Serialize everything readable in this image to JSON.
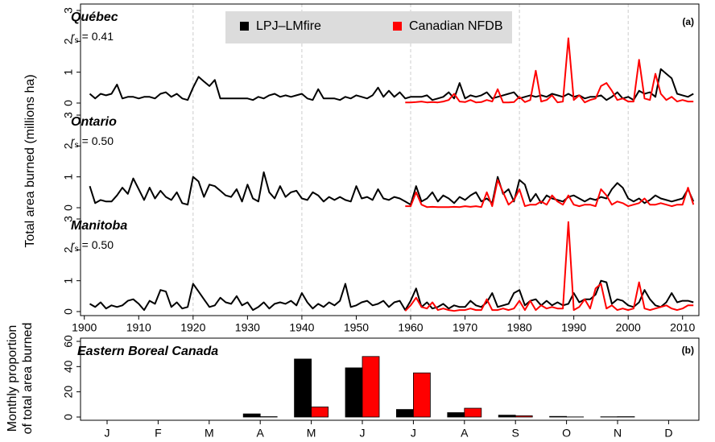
{
  "chart_data": [
    {
      "type": "line",
      "label": "(a)",
      "ylabel": "Total area burned (millions ha)",
      "x": [
        1901,
        1902,
        1903,
        1904,
        1905,
        1906,
        1907,
        1908,
        1909,
        1910,
        1911,
        1912,
        1913,
        1914,
        1915,
        1916,
        1917,
        1918,
        1919,
        1920,
        1921,
        1922,
        1923,
        1924,
        1925,
        1926,
        1927,
        1928,
        1929,
        1930,
        1931,
        1932,
        1933,
        1934,
        1935,
        1936,
        1937,
        1938,
        1939,
        1940,
        1941,
        1942,
        1943,
        1944,
        1945,
        1946,
        1947,
        1948,
        1949,
        1950,
        1951,
        1952,
        1953,
        1954,
        1955,
        1956,
        1957,
        1958,
        1959,
        1960,
        1961,
        1962,
        1963,
        1964,
        1965,
        1966,
        1967,
        1968,
        1969,
        1970,
        1971,
        1972,
        1973,
        1974,
        1975,
        1976,
        1977,
        1978,
        1979,
        1980,
        1981,
        1982,
        1983,
        1984,
        1985,
        1986,
        1987,
        1988,
        1989,
        1990,
        1991,
        1992,
        1993,
        1994,
        1995,
        1996,
        1997,
        1998,
        1999,
        2000,
        2001,
        2002,
        2003,
        2004,
        2005,
        2006,
        2007,
        2008,
        2009,
        2010,
        2011,
        2012
      ],
      "xlim": [
        1899.3,
        2013
      ],
      "xticks": [
        1900,
        1910,
        1920,
        1930,
        1940,
        1950,
        1960,
        1970,
        1980,
        1990,
        2000,
        2010
      ],
      "grid_x": [
        1920,
        1940,
        1960,
        1980,
        2000
      ],
      "series": [
        {
          "name": "LPJ–LMfire",
          "color": "#000000"
        },
        {
          "name": "Canadian NFDB",
          "color": "#ff0000"
        }
      ],
      "panels": [
        {
          "title": "Québec",
          "stat_symbol": "r",
          "stat_subscript": "s",
          "stat_text": "= 0.41",
          "ylim": [
            0,
            3
          ],
          "yticks": [
            0,
            1,
            2,
            3
          ],
          "values": [
            [
              0.3,
              0.15,
              0.3,
              0.25,
              0.3,
              0.6,
              0.15,
              0.2,
              0.2,
              0.15,
              0.2,
              0.2,
              0.15,
              0.3,
              0.35,
              0.2,
              0.3,
              0.15,
              0.1,
              0.5,
              0.85,
              0.7,
              0.55,
              0.75,
              0.15,
              0.15,
              0.15,
              0.15,
              0.15,
              0.15,
              0.1,
              0.2,
              0.15,
              0.25,
              0.3,
              0.2,
              0.25,
              0.2,
              0.25,
              0.3,
              0.15,
              0.1,
              0.45,
              0.15,
              0.15,
              0.15,
              0.1,
              0.2,
              0.15,
              0.25,
              0.2,
              0.15,
              0.25,
              0.5,
              0.2,
              0.4,
              0.2,
              0.35,
              0.15,
              0.2,
              0.2,
              0.2,
              0.25,
              0.1,
              0.15,
              0.2,
              0.35,
              0.15,
              0.65,
              0.15,
              0.25,
              0.2,
              0.25,
              0.35,
              0.15,
              0.2,
              0.25,
              0.3,
              0.35,
              0.15,
              0.2,
              0.25,
              0.2,
              0.25,
              0.2,
              0.3,
              0.25,
              0.2,
              0.3,
              0.2,
              0.25,
              0.15,
              0.2,
              0.2,
              0.25,
              0.1,
              0.2,
              0.35,
              0.15,
              0.2,
              0.1,
              0.4,
              0.3,
              0.35,
              0.2,
              1.1,
              0.95,
              0.8,
              0.3,
              0.25,
              0.2,
              0.3
            ],
            [
              null,
              null,
              null,
              null,
              null,
              null,
              null,
              null,
              null,
              null,
              null,
              null,
              null,
              null,
              null,
              null,
              null,
              null,
              null,
              null,
              null,
              null,
              null,
              null,
              null,
              null,
              null,
              null,
              null,
              null,
              null,
              null,
              null,
              null,
              null,
              null,
              null,
              null,
              null,
              null,
              null,
              null,
              null,
              null,
              null,
              null,
              null,
              null,
              null,
              null,
              null,
              null,
              null,
              null,
              null,
              null,
              null,
              null,
              0.02,
              0.02,
              0.03,
              0.05,
              0.02,
              0.03,
              0.02,
              0.05,
              0.1,
              0.3,
              0.05,
              0.03,
              0.1,
              0.02,
              0.03,
              0.1,
              0.05,
              0.45,
              0.02,
              0.02,
              0.03,
              0.2,
              0.03,
              0.1,
              1.05,
              0.05,
              0.1,
              0.25,
              0.02,
              0.05,
              2.1,
              0.1,
              0.25,
              0.02,
              0.1,
              0.15,
              0.55,
              0.65,
              0.4,
              0.1,
              0.15,
              0.05,
              0.05,
              1.4,
              0.15,
              0.1,
              0.95,
              0.3,
              0.1,
              0.2,
              0.05,
              0.1,
              0.05,
              0.05
            ]
          ]
        },
        {
          "title": "Ontario",
          "stat_symbol": "r",
          "stat_subscript": "s",
          "stat_text": "= 0.50",
          "ylim": [
            0,
            3
          ],
          "yticks": [
            0,
            1,
            2,
            3
          ],
          "values": [
            [
              0.7,
              0.15,
              0.25,
              0.2,
              0.2,
              0.4,
              0.65,
              0.45,
              0.95,
              0.6,
              0.25,
              0.65,
              0.3,
              0.55,
              0.35,
              0.25,
              0.5,
              0.15,
              0.1,
              1.0,
              0.85,
              0.35,
              0.75,
              0.7,
              0.55,
              0.4,
              0.35,
              0.6,
              0.2,
              0.75,
              0.3,
              0.2,
              1.15,
              0.5,
              0.3,
              0.7,
              0.35,
              0.5,
              0.55,
              0.3,
              0.25,
              0.5,
              0.4,
              0.2,
              0.35,
              0.25,
              0.35,
              0.25,
              0.2,
              0.7,
              0.3,
              0.35,
              0.25,
              0.6,
              0.3,
              0.25,
              0.35,
              0.3,
              0.2,
              0.1,
              0.7,
              0.2,
              0.3,
              0.5,
              0.2,
              0.4,
              0.3,
              0.15,
              0.35,
              0.25,
              0.4,
              0.5,
              0.2,
              0.3,
              0.15,
              1.0,
              0.45,
              0.6,
              0.2,
              0.9,
              0.75,
              0.2,
              0.45,
              0.15,
              0.4,
              0.3,
              0.25,
              0.2,
              0.35,
              0.4,
              0.3,
              0.2,
              0.3,
              0.25,
              0.35,
              0.3,
              0.6,
              0.8,
              0.65,
              0.3,
              0.2,
              0.3,
              0.15,
              0.25,
              0.4,
              0.3,
              0.25,
              0.2,
              0.25,
              0.3,
              0.6,
              0.2
            ],
            [
              null,
              null,
              null,
              null,
              null,
              null,
              null,
              null,
              null,
              null,
              null,
              null,
              null,
              null,
              null,
              null,
              null,
              null,
              null,
              null,
              null,
              null,
              null,
              null,
              null,
              null,
              null,
              null,
              null,
              null,
              null,
              null,
              null,
              null,
              null,
              null,
              null,
              null,
              null,
              null,
              null,
              null,
              null,
              null,
              null,
              null,
              null,
              null,
              null,
              null,
              null,
              null,
              null,
              null,
              null,
              null,
              null,
              null,
              0.05,
              0.05,
              0.5,
              0.1,
              0.02,
              0.03,
              0.02,
              0.02,
              0.02,
              0.03,
              0.02,
              0.05,
              0.03,
              0.05,
              0.02,
              0.5,
              0.05,
              0.9,
              0.5,
              0.1,
              0.25,
              0.6,
              0.05,
              0.1,
              0.1,
              0.2,
              0.1,
              0.4,
              0.2,
              0.1,
              0.4,
              0.1,
              0.05,
              0.1,
              0.1,
              0.05,
              0.6,
              0.4,
              0.1,
              0.2,
              0.15,
              0.05,
              0.1,
              0.15,
              0.3,
              0.1,
              0.1,
              0.15,
              0.1,
              0.05,
              0.1,
              0.1,
              0.65,
              0.1
            ]
          ]
        },
        {
          "title": "Manitoba",
          "stat_symbol": "r",
          "stat_subscript": "s",
          "stat_text": "= 0.50",
          "ylim": [
            0,
            3
          ],
          "yticks": [
            0,
            1,
            2,
            3
          ],
          "values": [
            [
              0.25,
              0.15,
              0.3,
              0.1,
              0.2,
              0.15,
              0.2,
              0.35,
              0.4,
              0.25,
              0.05,
              0.35,
              0.25,
              0.7,
              0.65,
              0.15,
              0.3,
              0.1,
              0.15,
              0.9,
              0.65,
              0.4,
              0.15,
              0.2,
              0.45,
              0.3,
              0.25,
              0.5,
              0.2,
              0.3,
              0.05,
              0.15,
              0.3,
              0.1,
              0.25,
              0.3,
              0.25,
              0.35,
              0.2,
              0.6,
              0.3,
              0.1,
              0.25,
              0.15,
              0.3,
              0.2,
              0.35,
              0.9,
              0.15,
              0.2,
              0.3,
              0.35,
              0.2,
              0.25,
              0.35,
              0.15,
              0.3,
              0.35,
              0.05,
              0.35,
              0.75,
              0.15,
              0.3,
              0.1,
              0.15,
              0.25,
              0.1,
              0.2,
              0.15,
              0.15,
              0.35,
              0.2,
              0.15,
              0.3,
              0.6,
              0.15,
              0.2,
              0.25,
              0.6,
              0.7,
              0.2,
              0.35,
              0.4,
              0.2,
              0.35,
              0.2,
              0.3,
              0.2,
              0.25,
              0.6,
              0.3,
              0.4,
              0.4,
              0.55,
              1.0,
              0.95,
              0.25,
              0.4,
              0.35,
              0.2,
              0.15,
              0.3,
              0.7,
              0.4,
              0.2,
              0.15,
              0.3,
              0.6,
              0.3,
              0.35,
              0.35,
              0.3
            ],
            [
              null,
              null,
              null,
              null,
              null,
              null,
              null,
              null,
              null,
              null,
              null,
              null,
              null,
              null,
              null,
              null,
              null,
              null,
              null,
              null,
              null,
              null,
              null,
              null,
              null,
              null,
              null,
              null,
              null,
              null,
              null,
              null,
              null,
              null,
              null,
              null,
              null,
              null,
              null,
              null,
              null,
              null,
              null,
              null,
              null,
              null,
              null,
              null,
              null,
              null,
              null,
              null,
              null,
              null,
              null,
              null,
              null,
              null,
              0.02,
              0.2,
              0.45,
              0.15,
              0.1,
              0.3,
              0.05,
              0.1,
              0.05,
              0.02,
              0.05,
              0.05,
              0.1,
              0.05,
              0.05,
              0.4,
              0.05,
              0.05,
              0.1,
              0.05,
              0.1,
              0.35,
              0.05,
              0.35,
              0.05,
              0.2,
              0.1,
              0.15,
              0.1,
              0.1,
              2.9,
              0.05,
              0.15,
              0.4,
              0.1,
              0.75,
              0.9,
              0.1,
              0.2,
              0.05,
              0.1,
              0.05,
              0.1,
              0.95,
              0.1,
              0.05,
              0.1,
              0.15,
              0.2,
              0.1,
              0.05,
              0.1,
              0.2,
              0.2
            ]
          ]
        }
      ]
    },
    {
      "type": "bar",
      "title": "Eastern Boreal Canada",
      "label": "(b)",
      "ylabel": [
        "Monthly proportion",
        "of total area burned"
      ],
      "categories": [
        "J",
        "F",
        "M",
        "A",
        "M",
        "J",
        "J",
        "A",
        "S",
        "O",
        "N",
        "D"
      ],
      "ylim": [
        0,
        60
      ],
      "yticks": [
        0,
        20,
        40,
        60
      ],
      "series": [
        {
          "name": "LPJ–LMfire",
          "color": "#000000",
          "values": [
            0,
            0,
            0,
            2.5,
            46,
            39,
            6,
            3.5,
            1.5,
            0.5,
            0.2,
            0
          ]
        },
        {
          "name": "Canadian NFDB",
          "color": "#ff0000",
          "values": [
            0,
            0,
            0,
            0.3,
            8,
            48,
            35,
            7,
            1,
            0.1,
            0.3,
            0
          ]
        }
      ]
    }
  ]
}
